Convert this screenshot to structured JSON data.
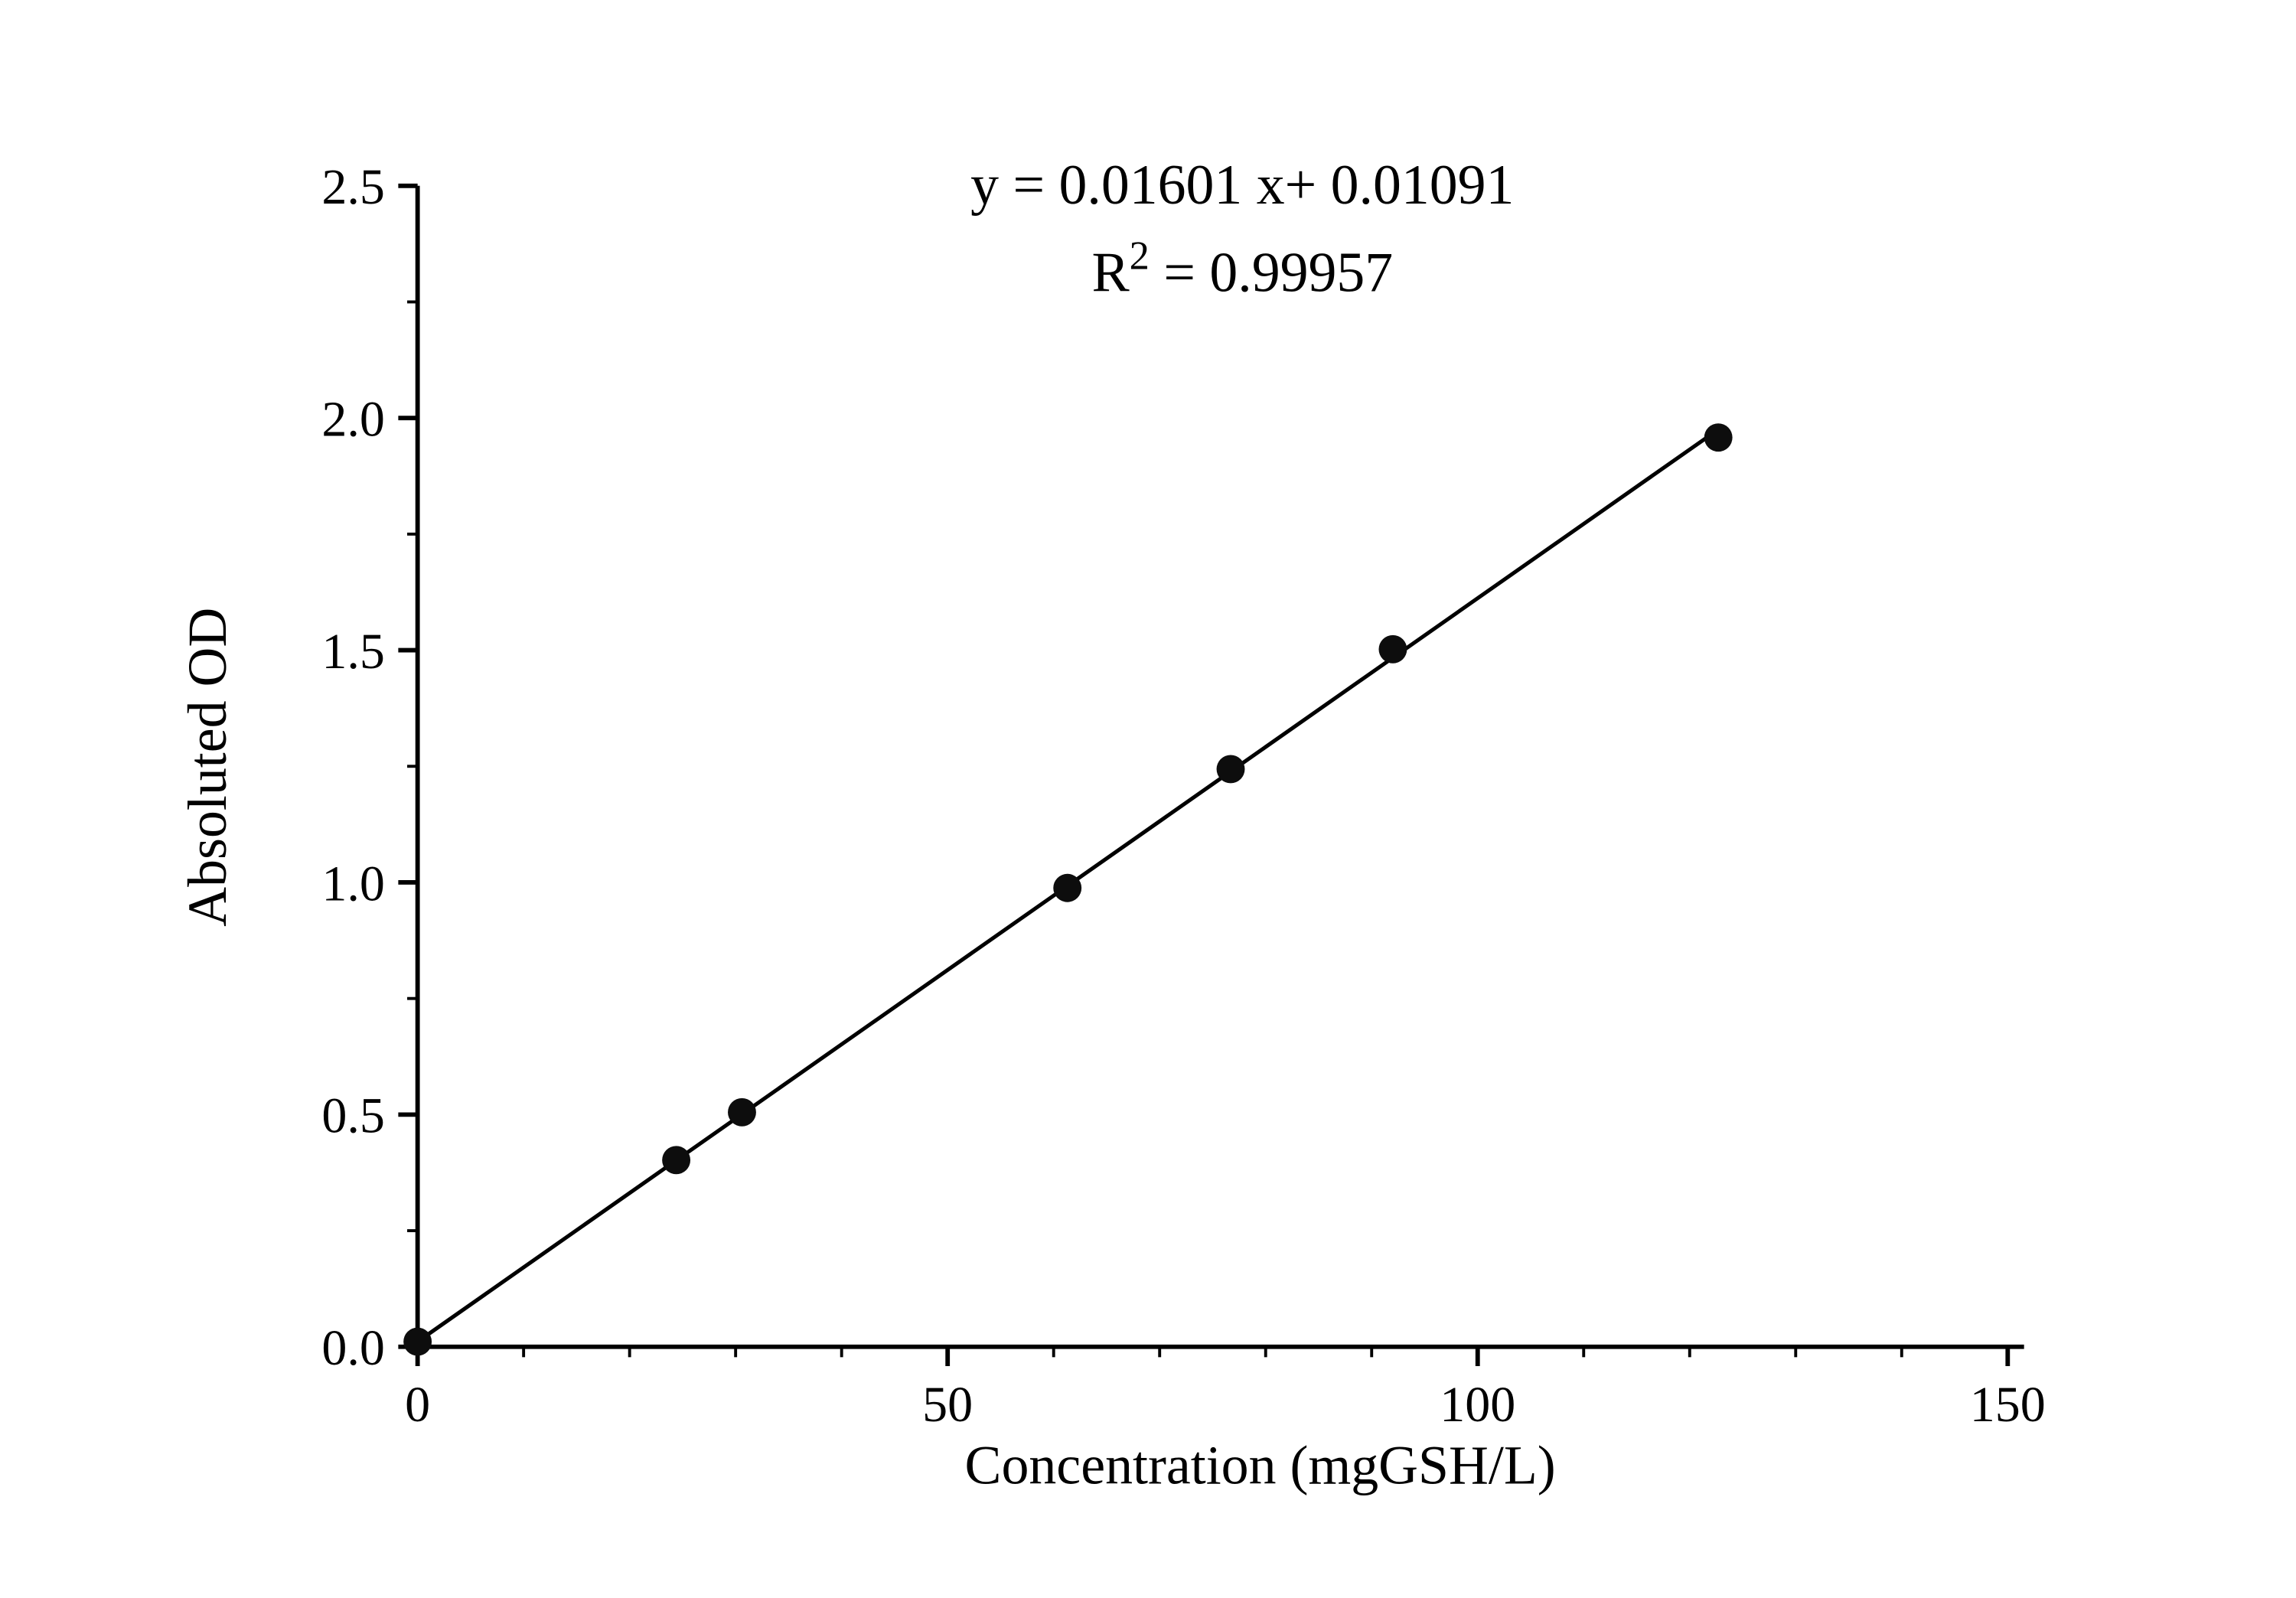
{
  "page": {
    "background_color": "#ffffff"
  },
  "chart_data": {
    "type": "scatter",
    "title": "",
    "annotation": {
      "line1": "y = 0.01601 x+ 0.01091",
      "line2_base": "R",
      "line2_sup": "2",
      "line2_rest": " = 0.99957"
    },
    "xlabel": "Concentration (mgGSH/L)",
    "ylabel": "Absoluted OD",
    "xlim": [
      0,
      150
    ],
    "ylim": [
      0.0,
      2.5
    ],
    "x_ticks": [
      0,
      50,
      100,
      150
    ],
    "x_tick_labels": [
      "0",
      "50",
      "100",
      "150"
    ],
    "x_minor_step": 10,
    "y_ticks": [
      0.0,
      0.5,
      1.0,
      1.5,
      2.0,
      2.5
    ],
    "y_tick_labels": [
      "0.0",
      "0.5",
      "1.0",
      "1.5",
      "2.0",
      "2.5"
    ],
    "y_minor_step": 0.25,
    "points": [
      {
        "x": 0,
        "y": 0.011
      },
      {
        "x": 24.4,
        "y": 0.402
      },
      {
        "x": 30.6,
        "y": 0.505
      },
      {
        "x": 61.3,
        "y": 0.988
      },
      {
        "x": 76.7,
        "y": 1.244
      },
      {
        "x": 92.0,
        "y": 1.502
      },
      {
        "x": 122.7,
        "y": 1.958
      }
    ],
    "fit_line": {
      "slope": 0.01601,
      "intercept": 0.01091,
      "x_start": 0,
      "x_end": 122.7
    },
    "colors": {
      "axis": "#000000",
      "line": "#000000",
      "marker": "#0d0d0d"
    },
    "grid": false,
    "legend_position": "none"
  }
}
